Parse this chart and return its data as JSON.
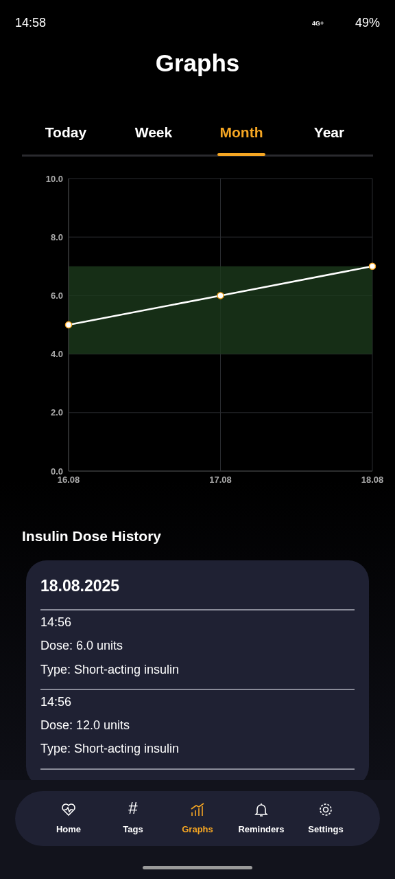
{
  "chart_data": {
    "type": "line",
    "title": "Graphs",
    "categories": [
      "16.08",
      "17.08",
      "18.08"
    ],
    "series": [
      {
        "color": "#ffffff",
        "values": [
          5,
          6,
          7
        ]
      }
    ],
    "ylim": [
      0,
      10
    ],
    "yticks": [
      {
        "value": 0,
        "label": "0.0"
      },
      {
        "value": 2,
        "label": "2.0"
      },
      {
        "value": 4,
        "label": "4.0"
      },
      {
        "value": 6,
        "label": "6.0"
      },
      {
        "value": 8,
        "label": "8.0"
      },
      {
        "value": 10,
        "label": "10.0"
      }
    ],
    "bands": [
      {
        "axis": "y",
        "from": 4,
        "to": 7,
        "color": "#1c3a1c"
      }
    ],
    "grid": true,
    "marker": "circle",
    "line_style": "solid",
    "legend": false,
    "annotations": [
      "14:58",
      "4G+",
      "49%",
      "Today",
      "Week",
      "Month",
      "Year",
      "Insulin Dose History",
      "18.08.2025",
      "14:56",
      "Dose: 6.0 units",
      "Type: Short-acting insulin",
      "14:56",
      "Dose: 12.0 units",
      "Type: Short-acting insulin",
      "Home",
      "#",
      "Graphs",
      "Reminders",
      "Settings",
      "Tags"
    ]
  }
}
